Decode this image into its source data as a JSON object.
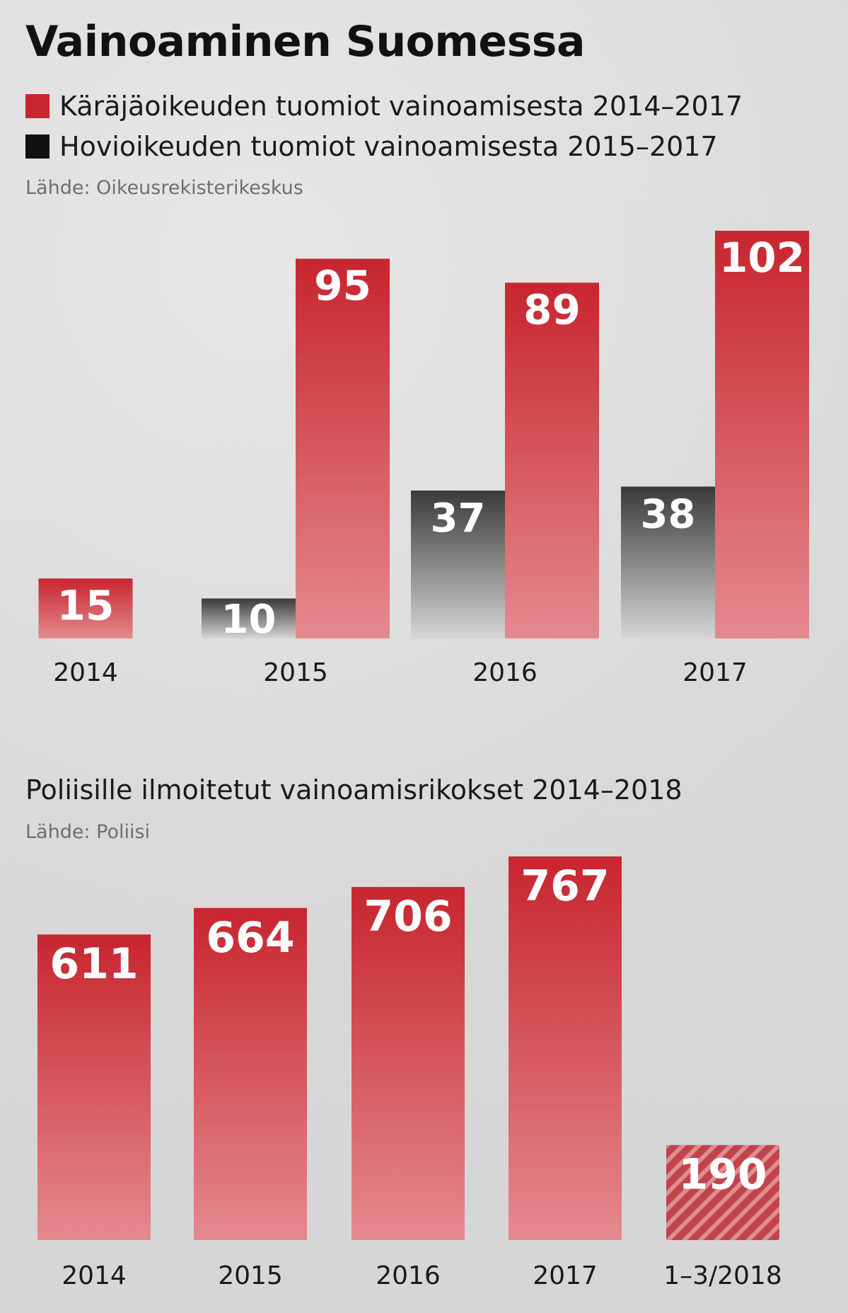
{
  "title": "Vainoaminen Suomessa",
  "colors": {
    "red": "#c8252f",
    "red_light": "#e08a8e",
    "dark": "#3a3a3a",
    "dark_light": "#d0d0d0"
  },
  "legend": [
    {
      "label": "Käräjäoikeuden tuomiot vainoamisesta 2014–2017",
      "color": "#c8252f"
    },
    {
      "label": "Hovioikeuden tuomiot vainoamisesta 2015–2017",
      "color": "#111111"
    }
  ],
  "source1": "Lähde: Oikeusrekisterikeskus",
  "subtitle2": "Poliisille ilmoitetut vainoamisrikokset 2014–2018",
  "source2": "Lähde: Poliisi",
  "chart_data": [
    {
      "type": "bar",
      "title": "Vainoaminen Suomessa",
      "categories": [
        "2014",
        "2015",
        "2016",
        "2017"
      ],
      "series": [
        {
          "name": "Hovioikeuden tuomiot vainoamisesta 2015–2017",
          "values": [
            null,
            10,
            37,
            38
          ]
        },
        {
          "name": "Käräjäoikeuden tuomiot vainoamisesta 2014–2017",
          "values": [
            15,
            95,
            89,
            102
          ]
        }
      ],
      "ylim": [
        0,
        102
      ]
    },
    {
      "type": "bar",
      "title": "Poliisille ilmoitetut vainoamisrikokset 2014–2018",
      "categories": [
        "2014",
        "2015",
        "2016",
        "2017",
        "1–3/2018"
      ],
      "values": [
        611,
        664,
        706,
        767,
        190
      ],
      "partial": [
        false,
        false,
        false,
        false,
        true
      ],
      "ylim": [
        0,
        767
      ]
    }
  ]
}
